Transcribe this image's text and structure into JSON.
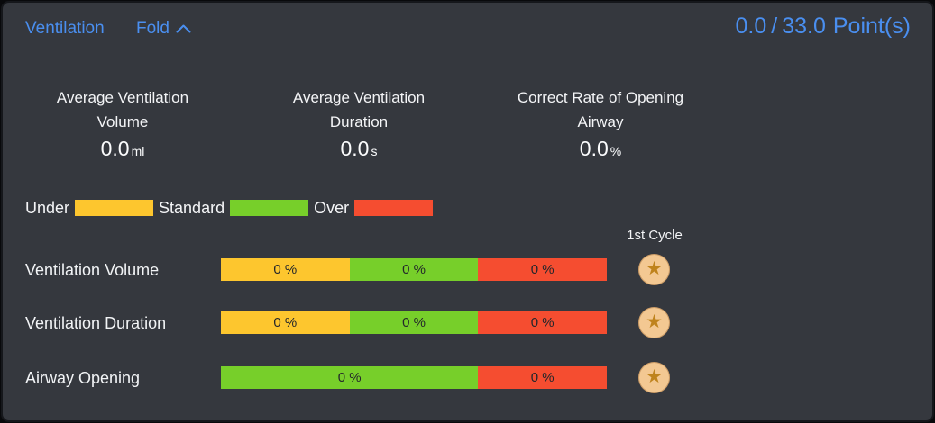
{
  "panel": {
    "title": "Ventilation",
    "fold_label": "Fold",
    "score": {
      "earned": "0.0",
      "separator": "/",
      "total": "33.0",
      "unit": "Point(s)"
    },
    "accent_color": "#4a8ff0",
    "background_color": "#35383e"
  },
  "stats": [
    {
      "title_line1": "Average Ventilation",
      "title_line2": "Volume",
      "value": "0.0",
      "unit": "ml"
    },
    {
      "title_line1": "Average Ventilation",
      "title_line2": "Duration",
      "value": "0.0",
      "unit": "s"
    },
    {
      "title_line1": "Correct Rate of Opening",
      "title_line2": "Airway",
      "value": "0.0",
      "unit": "%"
    }
  ],
  "legend": [
    {
      "label": "Under",
      "color": "#fdc62e"
    },
    {
      "label": "Standard",
      "color": "#77cf2a"
    },
    {
      "label": "Over",
      "color": "#f54d30"
    }
  ],
  "cycle_header": "1st Cycle",
  "icons": {
    "star": "★"
  },
  "chart_data": {
    "type": "bar",
    "title": "Ventilation",
    "unit": "%",
    "zone_colors": {
      "Under": "#fdc62e",
      "Standard": "#77cf2a",
      "Over": "#f54d30"
    },
    "rows": [
      {
        "label": "Ventilation Volume",
        "segments": [
          {
            "zone": "Under",
            "value": 0,
            "label": "0 %",
            "share": 1
          },
          {
            "zone": "Standard",
            "value": 0,
            "label": "0 %",
            "share": 1
          },
          {
            "zone": "Over",
            "value": 0,
            "label": "0 %",
            "share": 1
          }
        ],
        "badge": "star"
      },
      {
        "label": "Ventilation Duration",
        "segments": [
          {
            "zone": "Under",
            "value": 0,
            "label": "0 %",
            "share": 1
          },
          {
            "zone": "Standard",
            "value": 0,
            "label": "0 %",
            "share": 1
          },
          {
            "zone": "Over",
            "value": 0,
            "label": "0 %",
            "share": 1
          }
        ],
        "badge": "star"
      },
      {
        "label": "Airway Opening",
        "segments": [
          {
            "zone": "Standard",
            "value": 0,
            "label": "0 %",
            "share": 2
          },
          {
            "zone": "Over",
            "value": 0,
            "label": "0 %",
            "share": 1
          }
        ],
        "badge": "star"
      }
    ]
  }
}
